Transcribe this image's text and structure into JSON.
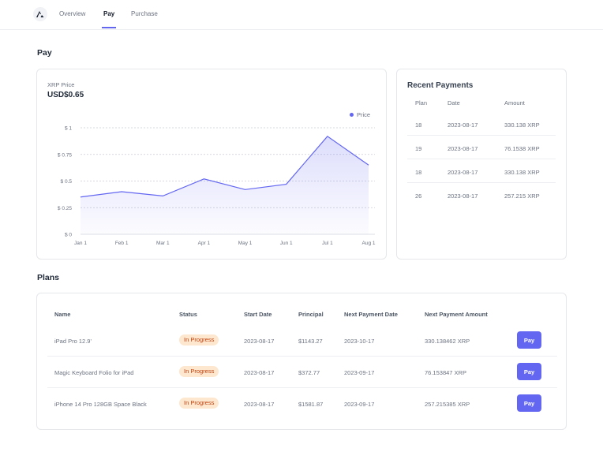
{
  "nav": {
    "tabs": [
      {
        "label": "Overview",
        "active": false
      },
      {
        "label": "Pay",
        "active": true
      },
      {
        "label": "Purchase",
        "active": false
      }
    ],
    "logo_icon": "logo-icon"
  },
  "pay_section": {
    "title": "Pay"
  },
  "price_card": {
    "label": "XRP Price",
    "value": "USD$0.65"
  },
  "chart_data": {
    "type": "area",
    "x": [
      "Jan 1",
      "Feb 1",
      "Mar 1",
      "Apr 1",
      "May 1",
      "Jun 1",
      "Jul 1",
      "Aug 1"
    ],
    "series": [
      {
        "name": "Price",
        "values": [
          0.35,
          0.4,
          0.36,
          0.52,
          0.42,
          0.47,
          0.92,
          0.65
        ]
      }
    ],
    "y_ticks": [
      "$ 0",
      "$ 0.25",
      "$ 0.5",
      "$ 0.75",
      "$ 1"
    ],
    "ylim": [
      0,
      1
    ],
    "grid": true,
    "legend_position": "top-right",
    "accent_color": "#6366f1"
  },
  "recent_payments": {
    "title": "Recent Payments",
    "columns": [
      "Plan",
      "Date",
      "Amount"
    ],
    "rows": [
      {
        "plan": "18",
        "date": "2023-08-17",
        "amount": "330.138 XRP"
      },
      {
        "plan": "19",
        "date": "2023-08-17",
        "amount": "76.1538 XRP"
      },
      {
        "plan": "18",
        "date": "2023-08-17",
        "amount": "330.138 XRP"
      },
      {
        "plan": "26",
        "date": "2023-08-17",
        "amount": "257.215 XRP"
      }
    ]
  },
  "plans": {
    "title": "Plans",
    "columns": [
      "Name",
      "Status",
      "Start Date",
      "Principal",
      "Next Payment Date",
      "Next Payment Amount"
    ],
    "rows": [
      {
        "name": "iPad Pro 12.9'",
        "status": "In Progress",
        "start_date": "2023-08-17",
        "principal": "$1143.27",
        "next_date": "2023-10-17",
        "next_amount": "330.138462 XRP",
        "action": "Pay"
      },
      {
        "name": "Magic Keyboard Folio for iPad",
        "status": "In Progress",
        "start_date": "2023-08-17",
        "principal": "$372.77",
        "next_date": "2023-09-17",
        "next_amount": "76.153847 XRP",
        "action": "Pay"
      },
      {
        "name": "iPhone 14 Pro 128GB Space Black",
        "status": "In Progress",
        "start_date": "2023-08-17",
        "principal": "$1581.87",
        "next_date": "2023-09-17",
        "next_amount": "257.215385 XRP",
        "action": "Pay"
      }
    ],
    "status_color": "#c2410c",
    "button_color": "#6366f1"
  }
}
